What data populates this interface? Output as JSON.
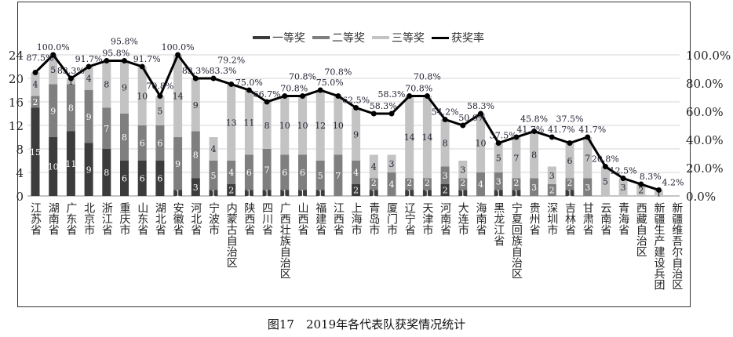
{
  "chart_data": {
    "type": "bar",
    "stacked": true,
    "title": "图17　2019年各代表队获奖情况统计",
    "xlabel": "",
    "ylabel": "",
    "ylim": [
      0,
      24
    ],
    "y2lim": [
      0,
      100
    ],
    "yticks": [
      "0",
      "4",
      "8",
      "12",
      "16",
      "20",
      "24"
    ],
    "y2ticks": [
      "0.0%",
      "20.0%",
      "40.0%",
      "60.0%",
      "80.0%",
      "100.0%"
    ],
    "legend_position": "top-center",
    "categories": [
      "江苏省",
      "湖南省",
      "广东省",
      "北京市",
      "浙江省",
      "重庆市",
      "山东省",
      "湖北省",
      "安徽省",
      "河北省",
      "宁波市",
      "内蒙古自治区",
      "陕西省",
      "四川省",
      "广西壮族自治区",
      "山西省",
      "福建省",
      "江西省",
      "上海市",
      "青岛市",
      "厦门市",
      "辽宁省",
      "天津市",
      "河南省",
      "大连市",
      "海南省",
      "黑龙江省",
      "宁夏回族自治区",
      "贵州省",
      "深圳市",
      "吉林省",
      "甘肃省",
      "云南省",
      "青海省",
      "西藏自治区",
      "新疆生产建设兵团",
      "新疆维吾尔自治区"
    ],
    "series": [
      {
        "name": "一等奖",
        "type": "bar",
        "color": "#3c3c3c",
        "values": [
          15,
          10,
          11,
          9,
          8,
          6,
          6,
          6,
          1,
          3,
          1,
          2,
          1,
          1,
          1,
          1,
          1,
          0,
          2,
          1,
          0,
          1,
          1,
          2,
          1,
          0,
          1,
          1,
          0,
          0,
          1,
          0,
          0,
          0,
          0,
          0,
          null
        ]
      },
      {
        "name": "二等奖",
        "type": "bar",
        "color": "#7f7f7f",
        "values": [
          2,
          9,
          8,
          9,
          7,
          8,
          6,
          6,
          9,
          8,
          5,
          4,
          6,
          7,
          6,
          6,
          5,
          7,
          4,
          2,
          4,
          2,
          2,
          3,
          2,
          4,
          3,
          2,
          3,
          2,
          2,
          3,
          0,
          0,
          0,
          0,
          null
        ]
      },
      {
        "name": "三等奖",
        "type": "bar",
        "color": "#c3c3c3",
        "values": [
          4,
          5,
          1,
          4,
          8,
          9,
          10,
          5,
          14,
          9,
          4,
          13,
          11,
          8,
          10,
          10,
          12,
          10,
          9,
          4,
          3,
          14,
          14,
          8,
          3,
          10,
          5,
          7,
          8,
          3,
          6,
          7,
          5,
          3,
          2,
          1,
          null
        ]
      },
      {
        "name": "获奖率",
        "type": "line",
        "axis": "right",
        "color": "#000000",
        "values": [
          87.5,
          100.0,
          83.3,
          91.7,
          95.8,
          95.8,
          91.7,
          70.8,
          100.0,
          83.3,
          83.3,
          79.2,
          75.0,
          66.7,
          70.8,
          70.8,
          75.0,
          70.8,
          62.5,
          58.3,
          58.3,
          70.8,
          70.8,
          54.2,
          50.0,
          58.3,
          37.5,
          41.7,
          45.8,
          41.7,
          37.5,
          41.7,
          20.8,
          12.5,
          8.3,
          4.2,
          null
        ]
      }
    ]
  }
}
